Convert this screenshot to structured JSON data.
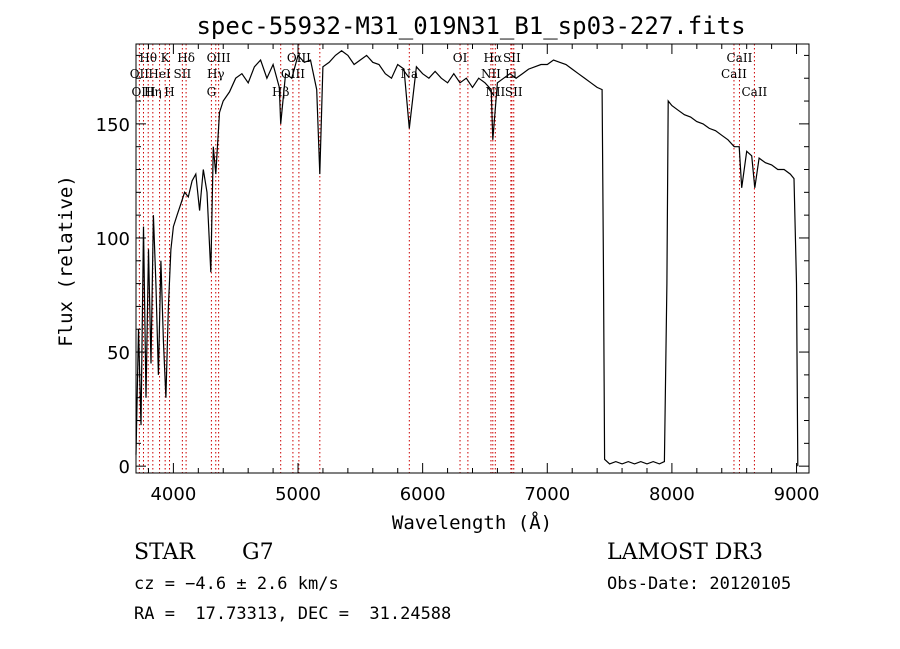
{
  "chart_data": {
    "type": "line",
    "title": "spec-55932-M31_019N31_B1_sp03-227.fits",
    "xlabel": "Wavelength (Å)",
    "ylabel": "Flux (relative)",
    "xlim": [
      3700,
      9100
    ],
    "ylim": [
      -3,
      185
    ],
    "xticks": [
      4000,
      5000,
      6000,
      7000,
      8000,
      9000
    ],
    "yticks": [
      0,
      50,
      100,
      150
    ],
    "grid": false,
    "series": [
      {
        "name": "spectrum",
        "x": [
          3700,
          3720,
          3740,
          3760,
          3780,
          3800,
          3820,
          3840,
          3860,
          3880,
          3900,
          3920,
          3940,
          3960,
          3980,
          4000,
          4030,
          4060,
          4090,
          4120,
          4150,
          4180,
          4210,
          4240,
          4270,
          4300,
          4320,
          4340,
          4370,
          4400,
          4450,
          4500,
          4550,
          4600,
          4650,
          4700,
          4750,
          4800,
          4850,
          4861,
          4900,
          4950,
          5000,
          5050,
          5100,
          5150,
          5175,
          5200,
          5250,
          5300,
          5350,
          5400,
          5450,
          5500,
          5550,
          5600,
          5650,
          5700,
          5750,
          5800,
          5850,
          5893,
          5950,
          6000,
          6050,
          6100,
          6150,
          6200,
          6250,
          6300,
          6350,
          6400,
          6450,
          6500,
          6550,
          6563,
          6600,
          6650,
          6700,
          6750,
          6800,
          6850,
          6900,
          6950,
          7000,
          7050,
          7100,
          7150,
          7200,
          7250,
          7300,
          7350,
          7400,
          7440,
          7450,
          7460,
          7500,
          7550,
          7600,
          7650,
          7700,
          7750,
          7800,
          7850,
          7900,
          7940,
          7960,
          7970,
          8000,
          8050,
          8100,
          8150,
          8200,
          8250,
          8300,
          8350,
          8400,
          8450,
          8500,
          8540,
          8560,
          8600,
          8640,
          8665,
          8700,
          8750,
          8800,
          8850,
          8900,
          8950,
          8980,
          9000,
          9010
        ],
        "values": [
          5,
          60,
          18,
          105,
          30,
          95,
          45,
          110,
          80,
          40,
          90,
          55,
          30,
          70,
          95,
          105,
          110,
          115,
          120,
          118,
          125,
          128,
          112,
          130,
          120,
          85,
          140,
          128,
          155,
          160,
          164,
          170,
          172,
          168,
          175,
          178,
          170,
          176,
          166,
          150,
          172,
          170,
          180,
          177,
          178,
          165,
          128,
          175,
          177,
          180,
          182,
          180,
          176,
          178,
          180,
          177,
          176,
          172,
          170,
          176,
          174,
          148,
          175,
          172,
          170,
          173,
          170,
          168,
          172,
          168,
          170,
          166,
          170,
          168,
          165,
          143,
          168,
          170,
          172,
          170,
          172,
          174,
          175,
          176,
          176,
          178,
          177,
          176,
          174,
          172,
          170,
          168,
          166,
          165,
          90,
          3,
          1,
          2,
          1,
          2,
          1,
          2,
          1,
          2,
          1,
          2,
          80,
          160,
          158,
          156,
          154,
          153,
          151,
          150,
          148,
          147,
          145,
          143,
          140,
          140,
          122,
          138,
          136,
          122,
          135,
          133,
          132,
          130,
          130,
          128,
          126,
          80,
          0
        ]
      }
    ],
    "lines": [
      {
        "label": "Hθ",
        "x": 3798,
        "row": 1
      },
      {
        "label": "OII",
        "x": 3727,
        "row": 2
      },
      {
        "label": "OIII",
        "x": 3760,
        "row": 3
      },
      {
        "label": "K",
        "x": 3934,
        "row": 1
      },
      {
        "label": "HeI",
        "x": 3889,
        "row": 2
      },
      {
        "label": "Hη",
        "x": 3835,
        "row": 3
      },
      {
        "label": "Hδ",
        "x": 4102,
        "row": 1
      },
      {
        "label": "SII",
        "x": 4072,
        "row": 2
      },
      {
        "label": "H",
        "x": 3969,
        "row": 3
      },
      {
        "label": "OIII",
        "x": 4363,
        "row": 1
      },
      {
        "label": "Hγ",
        "x": 4340,
        "row": 2
      },
      {
        "label": "G",
        "x": 4305,
        "row": 3
      },
      {
        "label": "OIII",
        "x": 5007,
        "row": 1
      },
      {
        "label": "OIII",
        "x": 4959,
        "row": 2
      },
      {
        "label": "Hβ",
        "x": 4861,
        "row": 3
      },
      {
        "label": "OI",
        "x": 6300,
        "row": 1
      },
      {
        "label": "Na",
        "x": 5893,
        "row": 2
      },
      {
        "label": "Hα",
        "x": 6563,
        "row": 1
      },
      {
        "label": "SII",
        "x": 6716,
        "row": 1
      },
      {
        "label": "NII",
        "x": 6548,
        "row": 2
      },
      {
        "label": "Li",
        "x": 6708,
        "row": 2
      },
      {
        "label": "NII",
        "x": 6583,
        "row": 3
      },
      {
        "label": "SII",
        "x": 6731,
        "row": 3
      },
      {
        "label": "CaII",
        "x": 8542,
        "row": 1
      },
      {
        "label": "CaII",
        "x": 8498,
        "row": 2
      },
      {
        "label": "CaII",
        "x": 8662,
        "row": 3
      }
    ],
    "marker_x": [
      3727,
      3760,
      3798,
      3835,
      3889,
      3934,
      3969,
      4072,
      4102,
      4305,
      4340,
      4363,
      4861,
      4959,
      5007,
      5175,
      5893,
      6300,
      6363,
      6548,
      6563,
      6583,
      6708,
      6716,
      6731,
      8498,
      8542,
      8662
    ]
  },
  "info": {
    "object_class": "STAR",
    "subclass": "G7",
    "cz": "cz = −4.6 ± 2.6 km/s",
    "coords": "RA =  17.73313, DEC =  31.24588",
    "survey": "LAMOST DR3",
    "obs_date": "Obs-Date: 20120105"
  }
}
